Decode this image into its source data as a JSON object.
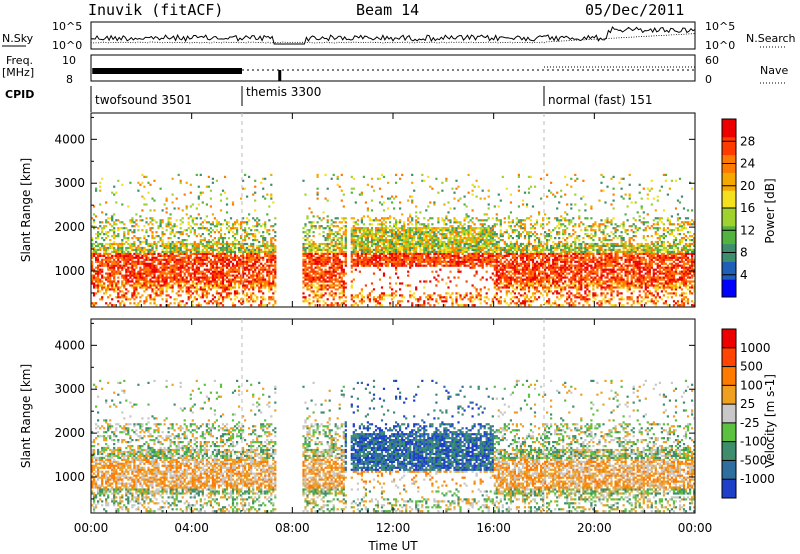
{
  "header": {
    "station": "Inuvik (fitACF)",
    "beam": "Beam 14",
    "date": "05/Dec/2011"
  },
  "left_labels": {
    "nsky": "N.Sky",
    "freq_line1": "Freq.",
    "freq_line2": "[MHz]",
    "cpid": "CPID"
  },
  "right_labels": {
    "nsearch": "N.Search",
    "nave": "Nave"
  },
  "top_panels": {
    "noise_ticks": [
      "10^5",
      "10^0"
    ],
    "freq_ticks": [
      "10",
      "8"
    ],
    "nave_ticks": [
      "60",
      "0"
    ]
  },
  "cpid_segments": [
    {
      "label": "twofsound 3501",
      "start_hr": 0
    },
    {
      "label": "themis 3300",
      "start_hr": 6
    },
    {
      "label": "normal (fast) 151",
      "start_hr": 18
    }
  ],
  "x_axis": {
    "label": "Time UT",
    "ticks": [
      "00:00",
      "04:00",
      "08:00",
      "12:00",
      "16:00",
      "20:00",
      "00:00"
    ],
    "range_hr": [
      0,
      24
    ]
  },
  "chart_data": [
    {
      "type": "heatmap",
      "title": "",
      "xlabel": "Time UT",
      "ylabel": "Slant Range [km]",
      "xlim": [
        0,
        24
      ],
      "ylim": [
        180,
        4600
      ],
      "yticks": [
        "1000",
        "2000",
        "3000",
        "4000"
      ],
      "colorbar": {
        "label": "Power [dB]",
        "ticks": [
          "4",
          "8",
          "12",
          "16",
          "20",
          "24",
          "28"
        ],
        "colors": [
          "#0000ff",
          "#1f5fb8",
          "#3e8e6e",
          "#52b340",
          "#9fd22f",
          "#f5e020",
          "#f5a800",
          "#ff7a00",
          "#ff3b00",
          "#ee0000"
        ]
      }
    },
    {
      "type": "heatmap",
      "title": "",
      "xlabel": "Time UT",
      "ylabel": "Slant Range [km]",
      "xlim": [
        0,
        24
      ],
      "ylim": [
        180,
        4600
      ],
      "yticks": [
        "1000",
        "2000",
        "3000",
        "4000"
      ],
      "colorbar": {
        "label": "Velocity [m s-1]",
        "ticks": [
          "1000",
          "500",
          "100",
          "25",
          "-25",
          "-100",
          "-500",
          "-1000"
        ],
        "colors": [
          "#1e3fc8",
          "#2f6fa0",
          "#3e8e6e",
          "#5cc040",
          "#c8c8c8",
          "#f0a020",
          "#ff7a00",
          "#ff4500",
          "#ee0000"
        ]
      }
    }
  ]
}
